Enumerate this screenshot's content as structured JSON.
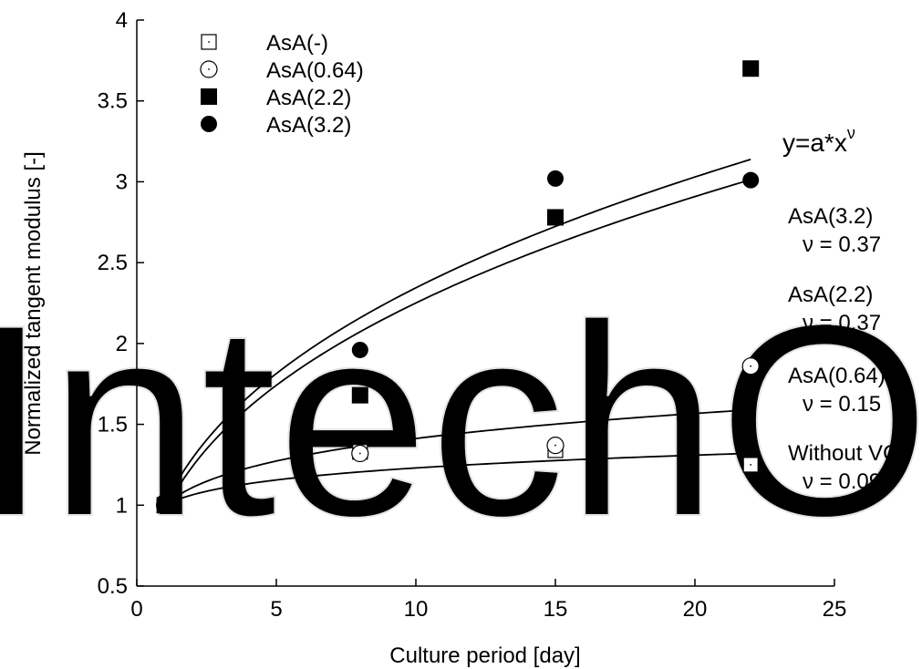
{
  "chart_data": {
    "type": "scatter",
    "watermark": "IntechOpen",
    "xlabel": "Culture period [day]",
    "ylabel": "Normalized tangent modulus [-]",
    "xlim": [
      0,
      25
    ],
    "ylim": [
      0.5,
      4
    ],
    "xticks": [
      0,
      5,
      10,
      15,
      20,
      25
    ],
    "yticks": [
      0.5,
      1,
      1.5,
      2,
      2.5,
      3,
      3.5,
      4
    ],
    "xtick_labels": [
      "0",
      "5",
      "10",
      "15",
      "20",
      "25"
    ],
    "ytick_labels": [
      "0.5",
      "1",
      "1.5",
      "2",
      "2.5",
      "3",
      "3.5",
      "4"
    ],
    "grid": false,
    "legend_position": "top-left",
    "formula_base": "y=a*x",
    "formula_exponent": "ν",
    "series": [
      {
        "name": "AsA(-)",
        "marker": "open-square",
        "x": [
          1,
          8,
          15,
          22
        ],
        "y": [
          1.0,
          1.33,
          1.34,
          1.25
        ]
      },
      {
        "name": "AsA(0.64)",
        "marker": "open-circle",
        "x": [
          1,
          8,
          15,
          22
        ],
        "y": [
          1.0,
          1.32,
          1.37,
          1.86
        ]
      },
      {
        "name": "AsA(2.2)",
        "marker": "filled-square",
        "x": [
          1,
          8,
          15,
          22
        ],
        "y": [
          1.0,
          1.68,
          2.78,
          3.7
        ]
      },
      {
        "name": "AsA(3.2)",
        "marker": "filled-circle",
        "x": [
          1,
          8,
          15,
          22
        ],
        "y": [
          1.02,
          1.96,
          3.02,
          3.01
        ]
      }
    ],
    "fits": [
      {
        "label": "AsA(3.2)",
        "nu_text": "ν = 0.37",
        "a": 1.0,
        "nu": 0.37
      },
      {
        "label": "AsA(2.2)",
        "nu_text": "ν = 0.37",
        "a": 0.96,
        "nu": 0.37
      },
      {
        "label": "AsA(0.64)",
        "nu_text": "ν = 0.15",
        "a": 1.0,
        "nu": 0.15
      },
      {
        "label": "Without VC",
        "nu_text": "ν = 0.090",
        "a": 1.0,
        "nu": 0.09
      }
    ]
  }
}
